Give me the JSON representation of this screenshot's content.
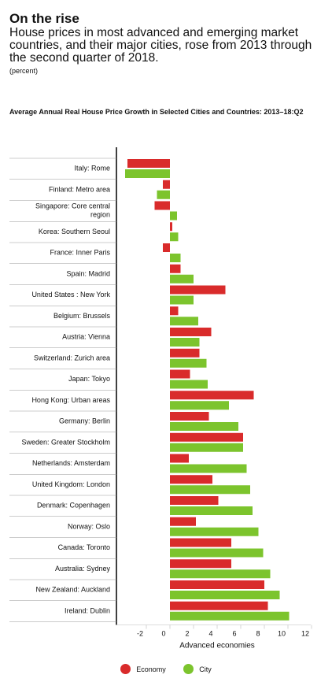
{
  "header": {
    "title": "On the rise",
    "subtitle": "House prices in most advanced and emerging market countries, and their major cities, rose from 2013 through the second quarter of 2018.",
    "units": "(percent)"
  },
  "colors": {
    "economy": "#d92b2b",
    "city": "#7cc42d"
  },
  "chart_data": {
    "type": "bar",
    "orientation": "horizontal",
    "title": "Average Annual Real House Price Growth in Selected Cities and Countries: 2013–18:Q2",
    "xlabel": "Advanced economies",
    "xlim": [
      -4,
      12
    ],
    "xticks": [
      -2,
      0,
      2,
      4,
      6,
      8,
      10,
      12
    ],
    "categories": [
      "Italy: Rome",
      "Finland: Metro area",
      "Singapore: Core central region",
      "Korea: Southern Seoul",
      "France: Inner Paris",
      "Spain: Madrid",
      "United States : New York",
      "Belgium: Brussels",
      "Austria: Vienna",
      "Switzerland: Zurich area",
      "Japan: Tokyo",
      "Hong Kong: Urban areas",
      "Germany: Berlin",
      "Sweden: Greater Stockholm",
      "Netherlands: Amsterdam",
      "United Kingdom: London",
      "Denmark: Copenhagen",
      "Norway: Oslo",
      "Canada: Toronto",
      "Australia: Sydney",
      "New Zealand: Auckland",
      "Ireland: Dublin"
    ],
    "series": [
      {
        "name": "Economy",
        "values": [
          -3.6,
          -0.6,
          -1.3,
          0.2,
          -0.6,
          0.9,
          4.7,
          0.7,
          3.5,
          2.5,
          1.7,
          7.1,
          3.3,
          6.2,
          1.6,
          3.6,
          4.1,
          2.2,
          5.2,
          5.2,
          8.0,
          8.3
        ]
      },
      {
        "name": "City",
        "values": [
          -3.8,
          -1.1,
          0.6,
          0.7,
          0.9,
          2.0,
          2.0,
          2.4,
          2.5,
          3.1,
          3.2,
          5.0,
          5.8,
          6.2,
          6.5,
          6.8,
          7.0,
          7.5,
          7.9,
          8.5,
          9.3,
          10.1
        ]
      }
    ],
    "legend": "bottom-center"
  }
}
